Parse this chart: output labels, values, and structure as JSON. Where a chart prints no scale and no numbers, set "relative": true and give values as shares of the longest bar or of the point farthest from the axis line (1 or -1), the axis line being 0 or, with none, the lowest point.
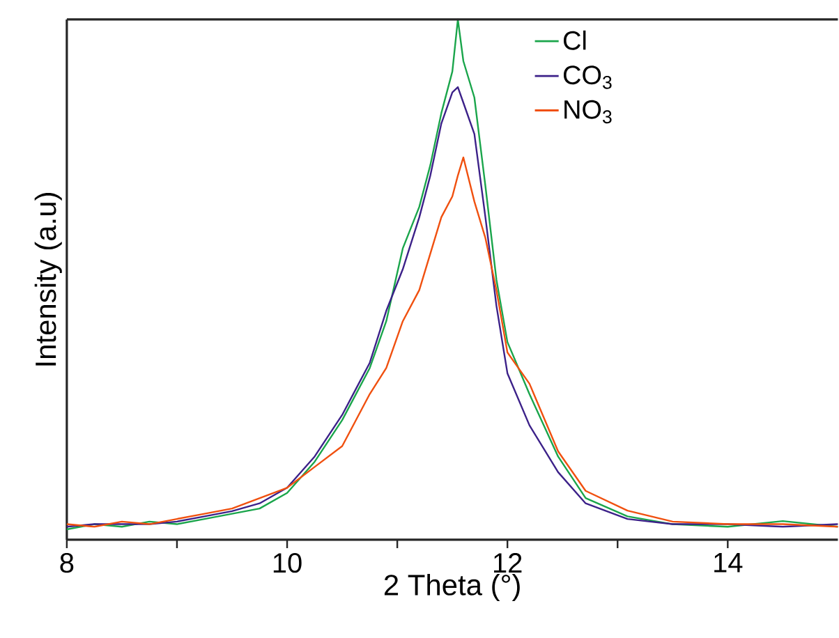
{
  "chart_data": {
    "type": "line",
    "relative": true,
    "xlabel": "2 Theta (°)",
    "ylabel": "Intensity (a.u)",
    "x": [
      8,
      8.25,
      8.5,
      8.75,
      9,
      9.25,
      9.5,
      9.75,
      10,
      10.25,
      10.5,
      10.75,
      10.9,
      11.05,
      11.2,
      11.3,
      11.4,
      11.5,
      11.55,
      11.6,
      11.7,
      11.8,
      11.9,
      12,
      12.2,
      12.46,
      12.71,
      13.09,
      13.5,
      14,
      14.5,
      15
    ],
    "xlim": [
      8,
      15
    ],
    "xticks": [
      8,
      {
        "value": 9,
        "label": null
      },
      10,
      {
        "value": 11,
        "label": null
      },
      12,
      {
        "value": 13,
        "label": null
      },
      14
    ],
    "legend": "top right",
    "tick_labels": "x",
    "grid": false,
    "marker": "none",
    "line_style": "solid",
    "series": [
      {
        "name": "Cl",
        "color": "#1aa54b",
        "values": [
          0.02,
          0.03,
          0.025,
          0.035,
          0.03,
          0.04,
          0.05,
          0.06,
          0.09,
          0.15,
          0.23,
          0.33,
          0.42,
          0.56,
          0.64,
          0.72,
          0.82,
          0.9,
          1.0,
          0.92,
          0.85,
          0.68,
          0.5,
          0.38,
          0.28,
          0.16,
          0.08,
          0.045,
          0.03,
          0.025,
          0.036,
          0.025
        ]
      },
      {
        "name": "CO$_{3}$",
        "color": "#3c2189",
        "values": [
          0.025,
          0.03,
          0.03,
          0.03,
          0.035,
          0.045,
          0.055,
          0.07,
          0.1,
          0.16,
          0.24,
          0.34,
          0.44,
          0.52,
          0.62,
          0.7,
          0.8,
          0.86,
          0.87,
          0.84,
          0.78,
          0.62,
          0.45,
          0.32,
          0.22,
          0.13,
          0.07,
          0.04,
          0.03,
          0.03,
          0.025,
          0.03
        ]
      },
      {
        "name": "NO$_{3}$",
        "color": "#f0500f",
        "values": [
          0.03,
          0.025,
          0.035,
          0.03,
          0.04,
          0.05,
          0.06,
          0.08,
          0.1,
          0.14,
          0.18,
          0.28,
          0.33,
          0.42,
          0.48,
          0.55,
          0.62,
          0.66,
          0.7,
          0.735,
          0.65,
          0.58,
          0.48,
          0.36,
          0.3,
          0.17,
          0.094,
          0.056,
          0.035,
          0.03,
          0.03,
          0.025
        ]
      }
    ]
  }
}
